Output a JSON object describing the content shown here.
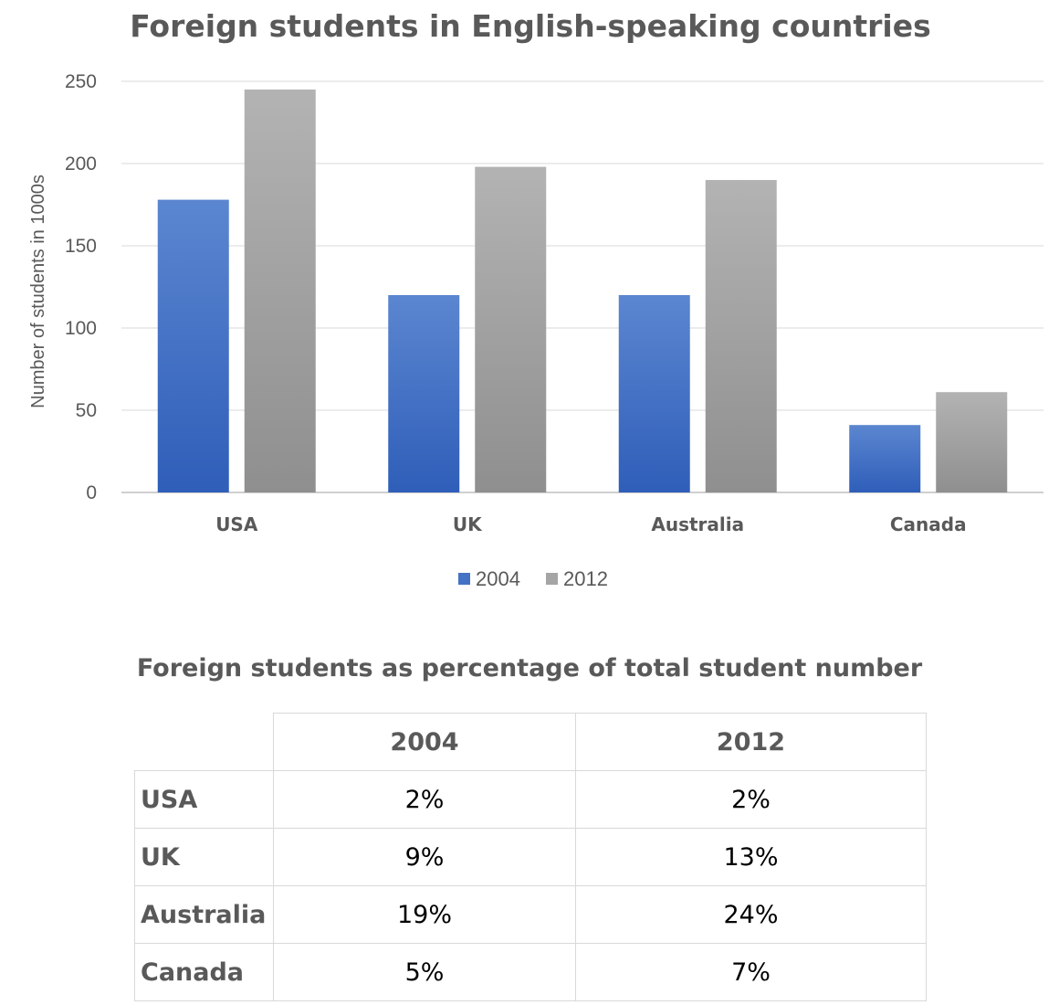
{
  "chart_data": {
    "type": "bar",
    "title": "Foreign students in English-speaking countries",
    "ylabel": "Number of students in 1000s",
    "xlabel": "",
    "categories": [
      "USA",
      "UK",
      "Australia",
      "Canada"
    ],
    "series": [
      {
        "name": "2004",
        "values": [
          178,
          120,
          120,
          41
        ]
      },
      {
        "name": "2012",
        "values": [
          245,
          198,
          190,
          61
        ]
      }
    ],
    "ylim": [
      0,
      250
    ],
    "yticks": [
      0,
      50,
      100,
      150,
      200,
      250
    ],
    "grid": true,
    "legend_position": "bottom",
    "colors": {
      "2004": "#4472c4",
      "2012": "#a5a5a5"
    }
  },
  "table": {
    "title": "Foreign students as percentage of total student number",
    "columns": [
      "2004",
      "2012"
    ],
    "rows": [
      {
        "country": "USA",
        "values": [
          "2%",
          "2%"
        ]
      },
      {
        "country": "UK",
        "values": [
          "9%",
          "13%"
        ]
      },
      {
        "country": "Australia",
        "values": [
          "19%",
          "24%"
        ]
      },
      {
        "country": "Canada",
        "values": [
          "5%",
          "7%"
        ]
      }
    ]
  }
}
